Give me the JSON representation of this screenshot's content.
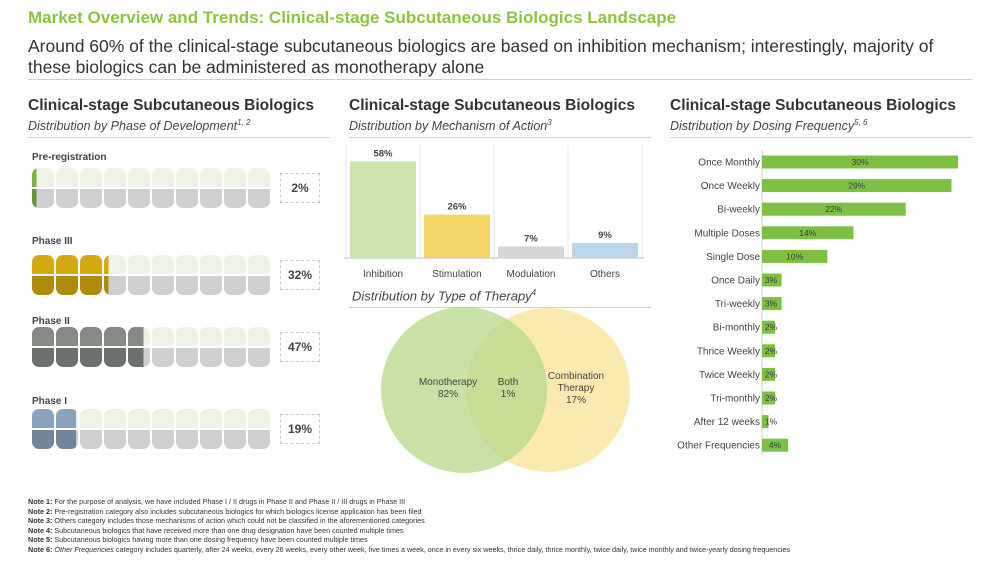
{
  "header": {
    "title": "Market Overview and Trends: Clinical-stage Subcutaneous Biologics Landscape",
    "subtitle": "Around 60% of the clinical-stage subcutaneous biologics are based on inhibition mechanism; interestingly, majority of these biologics can be administered as monotherapy alone"
  },
  "panels": {
    "phase": {
      "title": "Clinical-stage Subcutaneous Biologics",
      "subtitle": "Distribution by Phase of Development",
      "sup": "1, 2"
    },
    "moa": {
      "title": "Clinical-stage Subcutaneous Biologics",
      "subtitle": "Distribution by Mechanism of Action",
      "sup": "3"
    },
    "therapy": {
      "subtitle": "Distribution by Type of Therapy",
      "sup": "4"
    },
    "dosing": {
      "title": "Clinical-stage Subcutaneous Biologics",
      "subtitle": "Distribution by Dosing Frequency",
      "sup": "5, 6"
    }
  },
  "chart_data": [
    {
      "type": "bar",
      "id": "phase",
      "categories": [
        "Pre-registration",
        "Phase III",
        "Phase II",
        "Phase I"
      ],
      "values": [
        2,
        32,
        47,
        19
      ],
      "labels": [
        "2%",
        "32%",
        "47%",
        "19%"
      ],
      "colors": [
        "#7cb342",
        "#d4aa10",
        "#858a85",
        "#8aa3bd"
      ],
      "light_colors": [
        "#eef3e8",
        "#eef3e8",
        "#eef3e8",
        "#eef3e8"
      ]
    },
    {
      "type": "bar",
      "id": "moa",
      "categories": [
        "Inhibition",
        "Stimulation",
        "Modulation",
        "Others"
      ],
      "values": [
        58,
        26,
        7,
        9
      ],
      "labels": [
        "58%",
        "26%",
        "7%",
        "9%"
      ],
      "colors": [
        "#cde5ad",
        "#f2d566",
        "#d6d6d6",
        "#bcd5ea"
      ],
      "ylim": [
        0,
        60
      ]
    },
    {
      "type": "venn",
      "id": "therapy",
      "sets": [
        {
          "name": "Monotherapy",
          "value": "82%",
          "color": "#b9d98a"
        },
        {
          "name": "Combination Therapy",
          "value": "17%",
          "color": "#f9e6a2"
        }
      ],
      "overlap": {
        "name": "Both",
        "value": "1%"
      }
    },
    {
      "type": "bar",
      "id": "dosing",
      "orientation": "horizontal",
      "categories": [
        "Once Monthly",
        "Once Weekly",
        "Bi-weekly",
        "Multiple Doses",
        "Single Dose",
        "Once Daily",
        "Tri-weekly",
        "Bi-monthly",
        "Thrice Weekly",
        "Twice Weekly",
        "Tri-monthly",
        "After 12 weeks",
        "Other Frequencies"
      ],
      "values": [
        30,
        29,
        22,
        14,
        10,
        3,
        3,
        2,
        2,
        2,
        2,
        1,
        4
      ],
      "labels": [
        "30%",
        "29%",
        "22%",
        "14%",
        "10%",
        "3%",
        "3%",
        "2%",
        "2%",
        "2%",
        "2%",
        "1%",
        "4%"
      ],
      "color": "#7cc142",
      "xlim": [
        0,
        30
      ]
    }
  ],
  "notes": [
    {
      "label": "Note 1:",
      "text": "For the purpose of analysis, we have included Phase I / II drugs in Phase II and Phase II / III drugs in Phase III"
    },
    {
      "label": "Note 2:",
      "text": "Pre-registration category also includes subcutaneous biologics for which biologics license application has been filed"
    },
    {
      "label": "Note 3:",
      "text": "Others category includes those mechanisms of action which could not be classified in the aforementioned categories"
    },
    {
      "label": "Note 4:",
      "text": "Subcutaneous biologics that have received more than one drug designation have been counted multiple times"
    },
    {
      "label": "Note 5:",
      "text": "Subcutaneous biologics having more than one dosing frequency have been counted multiple times"
    },
    {
      "label": "Note 6:",
      "italic": "Other Frequencies",
      "text": " category includes quarterly, after 24 weeks, every 26 weeks, every other week, five times a week, once in every six weeks, thrice daily, thrice monthly, twice daily, twice monthly and twice-yearly dosing frequencies"
    }
  ]
}
